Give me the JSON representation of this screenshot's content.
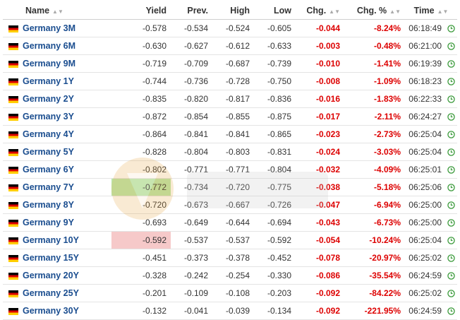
{
  "colors": {
    "link": "#1a4d8f",
    "negative": "#dd0000",
    "up_flash": "#b9e6ab",
    "down_flash": "#f6c9c9",
    "clock": "#3a9a3a"
  },
  "headers": {
    "name": "Name",
    "yield": "Yield",
    "prev": "Prev.",
    "high": "High",
    "low": "Low",
    "chg": "Chg.",
    "chg_pct": "Chg. %",
    "time": "Time"
  },
  "rows": [
    {
      "name": "Germany 3M",
      "yield": "-0.578",
      "prev": "-0.534",
      "high": "-0.524",
      "low": "-0.605",
      "chg": "-0.044",
      "chg_pct": "-8.24%",
      "time": "06:18:49"
    },
    {
      "name": "Germany 6M",
      "yield": "-0.630",
      "prev": "-0.627",
      "high": "-0.612",
      "low": "-0.633",
      "chg": "-0.003",
      "chg_pct": "-0.48%",
      "time": "06:21:00"
    },
    {
      "name": "Germany 9M",
      "yield": "-0.719",
      "prev": "-0.709",
      "high": "-0.687",
      "low": "-0.739",
      "chg": "-0.010",
      "chg_pct": "-1.41%",
      "time": "06:19:39"
    },
    {
      "name": "Germany 1Y",
      "yield": "-0.744",
      "prev": "-0.736",
      "high": "-0.728",
      "low": "-0.750",
      "chg": "-0.008",
      "chg_pct": "-1.09%",
      "time": "06:18:23"
    },
    {
      "name": "Germany 2Y",
      "yield": "-0.835",
      "prev": "-0.820",
      "high": "-0.817",
      "low": "-0.836",
      "chg": "-0.016",
      "chg_pct": "-1.83%",
      "time": "06:22:33"
    },
    {
      "name": "Germany 3Y",
      "yield": "-0.872",
      "prev": "-0.854",
      "high": "-0.855",
      "low": "-0.875",
      "chg": "-0.017",
      "chg_pct": "-2.11%",
      "time": "06:24:27"
    },
    {
      "name": "Germany 4Y",
      "yield": "-0.864",
      "prev": "-0.841",
      "high": "-0.841",
      "low": "-0.865",
      "chg": "-0.023",
      "chg_pct": "-2.73%",
      "time": "06:25:04"
    },
    {
      "name": "Germany 5Y",
      "yield": "-0.828",
      "prev": "-0.804",
      "high": "-0.803",
      "low": "-0.831",
      "chg": "-0.024",
      "chg_pct": "-3.03%",
      "time": "06:25:04"
    },
    {
      "name": "Germany 6Y",
      "yield": "-0.802",
      "prev": "-0.771",
      "high": "-0.771",
      "low": "-0.804",
      "chg": "-0.032",
      "chg_pct": "-4.09%",
      "time": "06:25:01"
    },
    {
      "name": "Germany 7Y",
      "yield": "-0.772",
      "prev": "-0.734",
      "high": "-0.720",
      "low": "-0.775",
      "chg": "-0.038",
      "chg_pct": "-5.18%",
      "time": "06:25:06",
      "flash": "up"
    },
    {
      "name": "Germany 8Y",
      "yield": "-0.720",
      "prev": "-0.673",
      "high": "-0.667",
      "low": "-0.726",
      "chg": "-0.047",
      "chg_pct": "-6.94%",
      "time": "06:25:00"
    },
    {
      "name": "Germany 9Y",
      "yield": "-0.693",
      "prev": "-0.649",
      "high": "-0.644",
      "low": "-0.694",
      "chg": "-0.043",
      "chg_pct": "-6.73%",
      "time": "06:25:00"
    },
    {
      "name": "Germany 10Y",
      "yield": "-0.592",
      "prev": "-0.537",
      "high": "-0.537",
      "low": "-0.592",
      "chg": "-0.054",
      "chg_pct": "-10.24%",
      "time": "06:25:04",
      "flash": "down"
    },
    {
      "name": "Germany 15Y",
      "yield": "-0.451",
      "prev": "-0.373",
      "high": "-0.378",
      "low": "-0.452",
      "chg": "-0.078",
      "chg_pct": "-20.97%",
      "time": "06:25:02"
    },
    {
      "name": "Germany 20Y",
      "yield": "-0.328",
      "prev": "-0.242",
      "high": "-0.254",
      "low": "-0.330",
      "chg": "-0.086",
      "chg_pct": "-35.54%",
      "time": "06:24:59"
    },
    {
      "name": "Germany 25Y",
      "yield": "-0.201",
      "prev": "-0.109",
      "high": "-0.108",
      "low": "-0.203",
      "chg": "-0.092",
      "chg_pct": "-84.22%",
      "time": "06:25:02"
    },
    {
      "name": "Germany 30Y",
      "yield": "-0.132",
      "prev": "-0.041",
      "high": "-0.039",
      "low": "-0.134",
      "chg": "-0.092",
      "chg_pct": "-221.95%",
      "time": "06:24:59"
    }
  ],
  "icons": {
    "flag": "germany-flag-icon",
    "clock": "clock-icon",
    "sort": "sort-arrows-icon"
  }
}
